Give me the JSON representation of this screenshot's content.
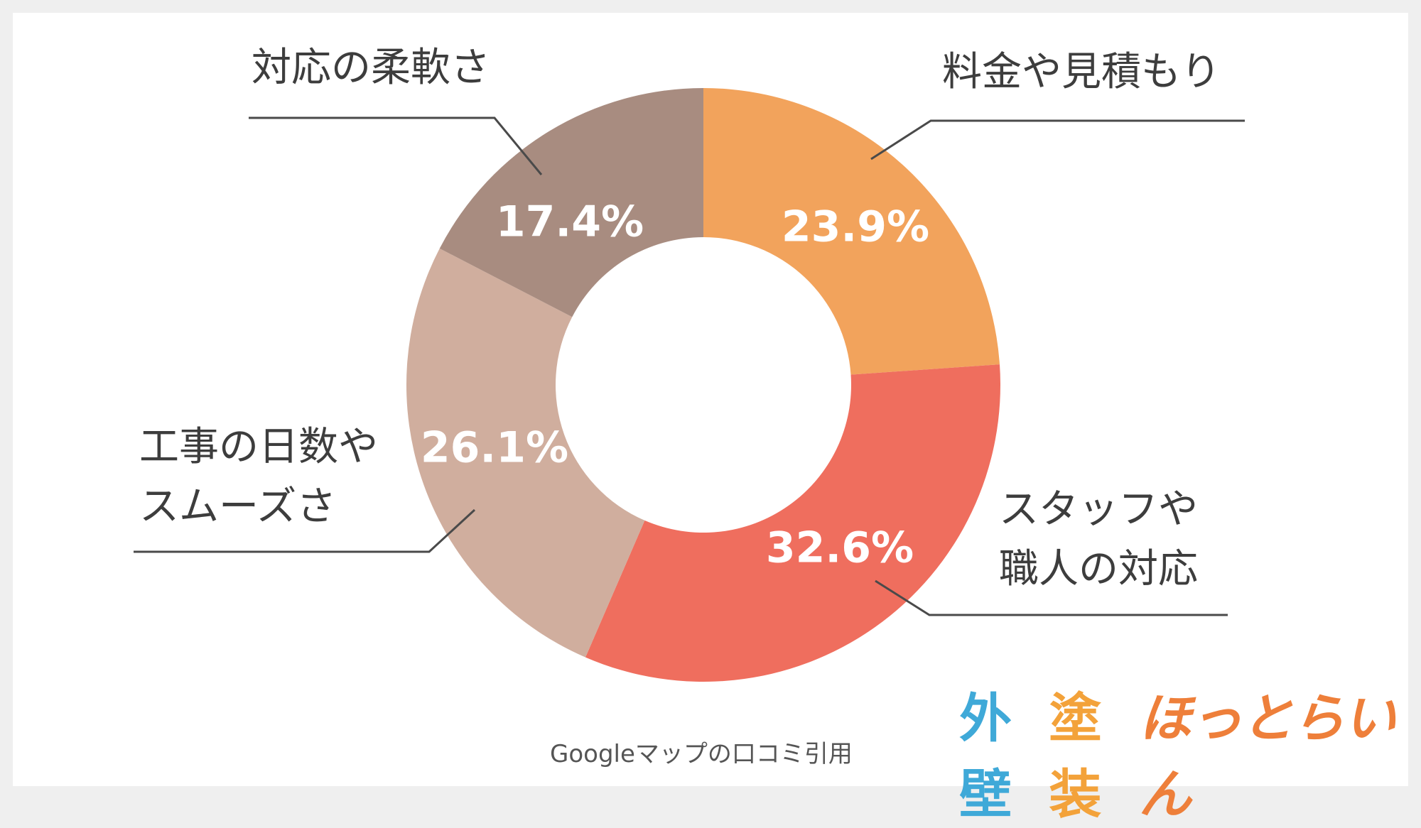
{
  "chart_data": {
    "type": "pie",
    "donut": true,
    "slices": [
      {
        "label": "料金や見積もり",
        "value": 23.9,
        "display": "23.9%",
        "color": "#F2A35C"
      },
      {
        "label": "スタッフや職人の対応",
        "value": 32.6,
        "display": "32.6%",
        "color": "#EF6E5E"
      },
      {
        "label": "工事の日数やスムーズさ",
        "value": 26.1,
        "display": "26.1%",
        "color": "#D0AE9E"
      },
      {
        "label": "対応の柔軟さ",
        "value": 17.4,
        "display": "17.4%",
        "color": "#A88C80"
      }
    ],
    "category_labels": [
      {
        "lines": [
          "料金や見積もり"
        ]
      },
      {
        "lines": [
          "スタッフや",
          "職人の対応"
        ]
      },
      {
        "lines": [
          "工事の日数や",
          "スムーズさ"
        ]
      },
      {
        "lines": [
          "対応の柔軟さ"
        ]
      }
    ]
  },
  "source_note": "Googleマップの口コミ引用",
  "logo": {
    "part1": "外壁",
    "part2": "塗装",
    "part3": "ほっとらいん"
  }
}
